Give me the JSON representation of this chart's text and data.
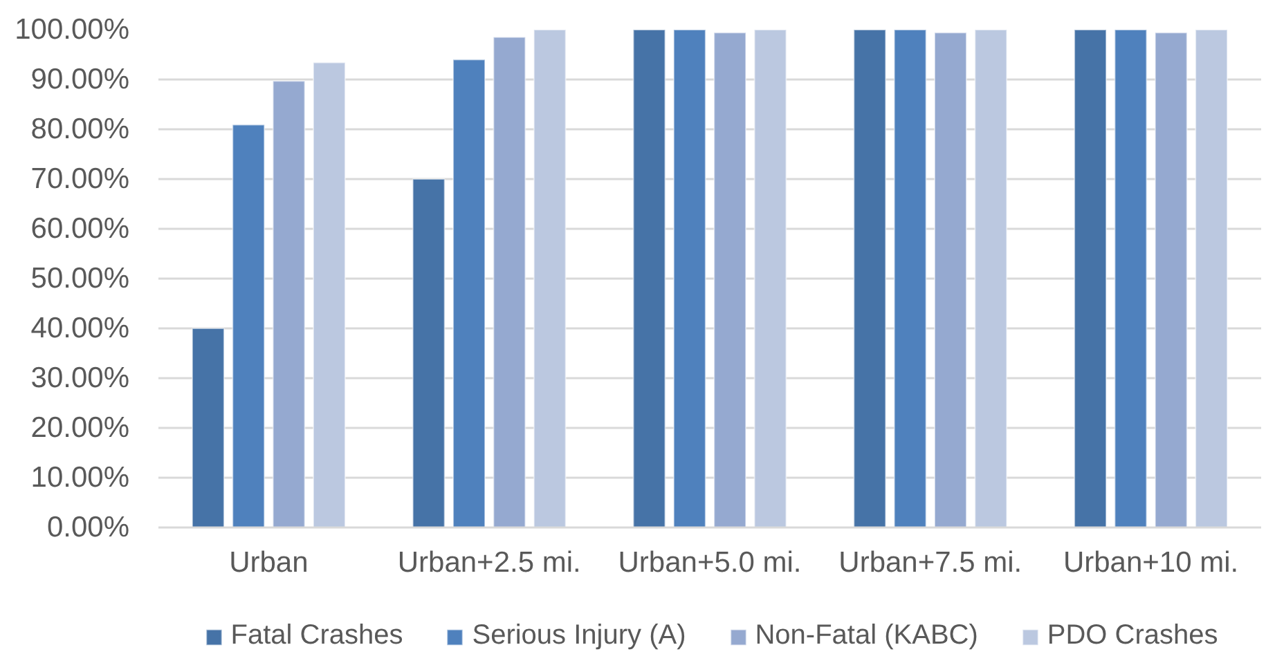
{
  "chart_data": {
    "type": "bar",
    "categories": [
      "Urban",
      "Urban+2.5 mi.",
      "Urban+5.0 mi.",
      "Urban+7.5 mi.",
      "Urban+10 mi."
    ],
    "series": [
      {
        "name": "Fatal Crashes",
        "color": "#4673a7",
        "values": [
          40,
          70,
          100,
          100,
          100
        ]
      },
      {
        "name": "Serious Injury (A)",
        "color": "#4f81bd",
        "values": [
          80.9,
          94,
          100,
          100,
          100
        ]
      },
      {
        "name": "Non-Fatal (KABC)",
        "color": "#95a9d0",
        "values": [
          89.7,
          98.5,
          99.4,
          99.4,
          99.4
        ]
      },
      {
        "name": "PDO Crashes",
        "color": "#bbc8e0",
        "values": [
          93.4,
          100,
          100,
          100,
          100
        ]
      }
    ],
    "ylim": [
      0,
      100
    ],
    "yticks": [
      {
        "value": 0,
        "label": "0.00%"
      },
      {
        "value": 10,
        "label": "10.00%"
      },
      {
        "value": 20,
        "label": "20.00%"
      },
      {
        "value": 30,
        "label": "30.00%"
      },
      {
        "value": 40,
        "label": "40.00%"
      },
      {
        "value": 50,
        "label": "50.00%"
      },
      {
        "value": 60,
        "label": "60.00%"
      },
      {
        "value": 70,
        "label": "70.00%"
      },
      {
        "value": 80,
        "label": "80.00%"
      },
      {
        "value": 90,
        "label": "90.00%"
      },
      {
        "value": 100,
        "label": "100.00%"
      }
    ],
    "grid": "y",
    "legend": "bottom"
  }
}
